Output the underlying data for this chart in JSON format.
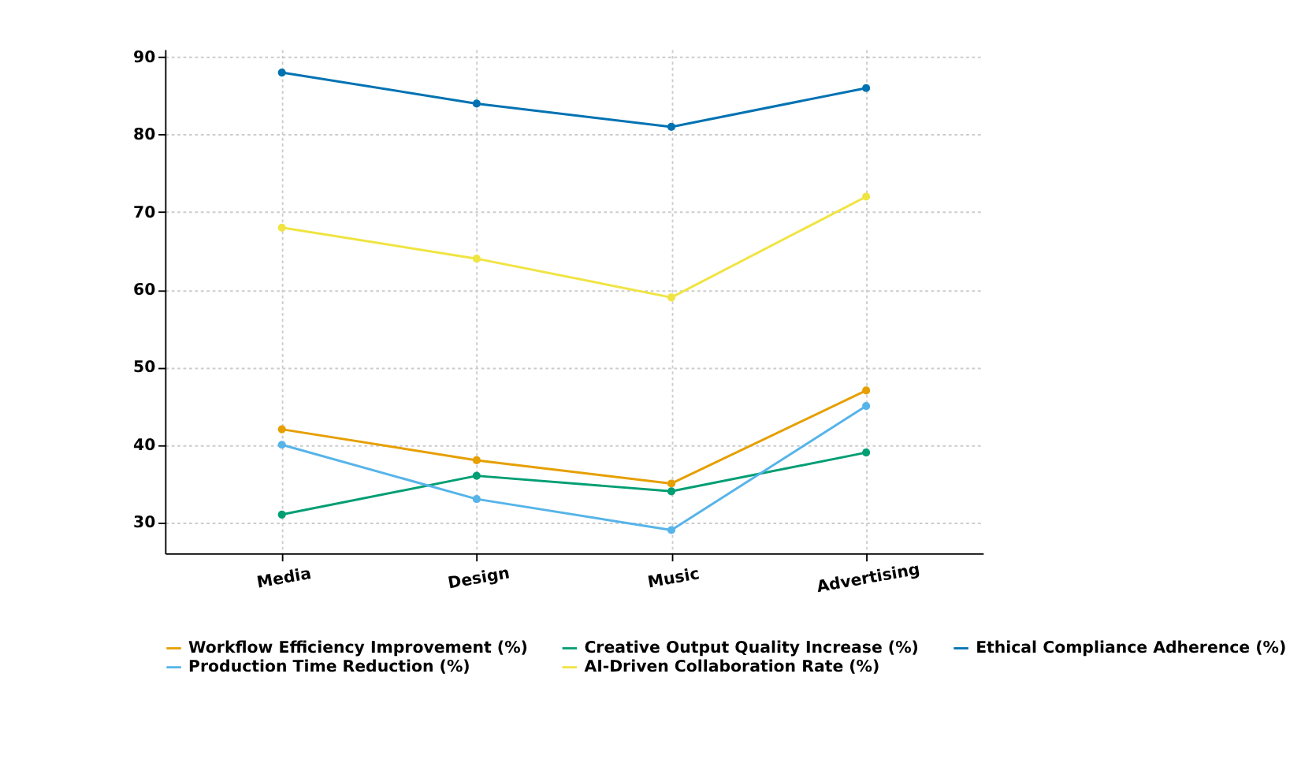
{
  "chart_data": {
    "type": "line",
    "categories": [
      "Media",
      "Design",
      "Music",
      "Advertising"
    ],
    "series": [
      {
        "name": "Workflow Efficiency Improvement (%)",
        "color": "#e69f00",
        "values": [
          42,
          38,
          35,
          47
        ]
      },
      {
        "name": "Creative Output Quality Increase (%)",
        "color": "#009e73",
        "values": [
          31,
          36,
          34,
          39
        ]
      },
      {
        "name": "Ethical Compliance Adherence (%)",
        "color": "#0072b2",
        "values": [
          88,
          84,
          81,
          86
        ]
      },
      {
        "name": "Production Time Reduction (%)",
        "color": "#56b4e9",
        "values": [
          40,
          33,
          29,
          45
        ]
      },
      {
        "name": "AI-Driven Collaboration Rate (%)",
        "color": "#f0e442",
        "values": [
          68,
          64,
          59,
          72
        ]
      }
    ],
    "ylim": [
      26,
      91
    ],
    "yticks": [
      30,
      40,
      50,
      60,
      70,
      80,
      90
    ],
    "grid": true,
    "legend": "bottom",
    "marker": "circle",
    "line_style": "solid"
  }
}
